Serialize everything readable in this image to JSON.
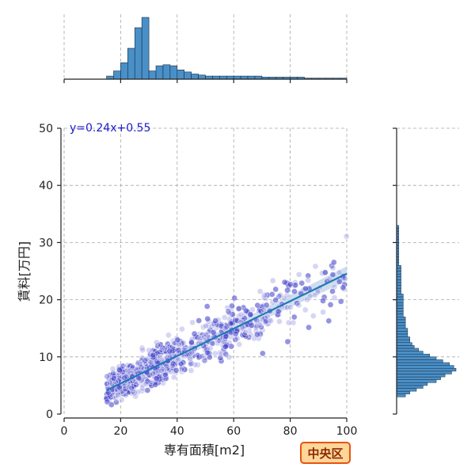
{
  "chart_data": {
    "type": "scatter",
    "title": "",
    "xlabel": "専有面積[m2]",
    "ylabel": "賃料[万円]",
    "xlim": [
      0,
      100
    ],
    "ylim": [
      0,
      50
    ],
    "xticks": [
      0,
      20,
      40,
      60,
      80,
      100
    ],
    "yticks": [
      0,
      10,
      20,
      30,
      40,
      50
    ],
    "grid": true,
    "regression": {
      "slope": 0.24,
      "intercept": 0.55,
      "x_range": [
        15,
        100
      ],
      "label": "y=0.24x+0.55"
    },
    "scatter_clusters": [
      {
        "x_range": [
          15,
          25
        ],
        "y_center_offset": 0,
        "y_spread": 2.2,
        "count": 260
      },
      {
        "x_range": [
          25,
          40
        ],
        "y_center_offset": 0,
        "y_spread": 3.0,
        "count": 260
      },
      {
        "x_range": [
          40,
          60
        ],
        "y_center_offset": 0,
        "y_spread": 4.0,
        "count": 180
      },
      {
        "x_range": [
          60,
          80
        ],
        "y_center_offset": 0,
        "y_spread": 4.5,
        "count": 110
      },
      {
        "x_range": [
          80,
          100
        ],
        "y_center_offset": 0,
        "y_spread": 5.0,
        "count": 55
      }
    ],
    "x_histogram": {
      "bin_width": 2.5,
      "bins_start": 15,
      "counts": [
        3,
        8,
        16,
        30,
        50,
        60,
        8,
        13,
        14,
        13,
        9,
        7,
        5,
        4,
        3,
        3,
        3,
        3,
        3,
        3,
        3,
        3,
        2,
        2,
        2,
        2,
        2,
        2,
        1,
        1,
        1,
        1,
        1,
        1
      ]
    },
    "y_histogram": {
      "bin_width": 0.5,
      "bins_start": 3,
      "counts": [
        4,
        6,
        9,
        12,
        14,
        18,
        20,
        22,
        25,
        27,
        26,
        24,
        21,
        18,
        15,
        12,
        10,
        8,
        7,
        6,
        6,
        5,
        5,
        5,
        4,
        4,
        4,
        4,
        3,
        3,
        3,
        3,
        3,
        3,
        3,
        3,
        2,
        2,
        2,
        2,
        2,
        2,
        2,
        2,
        2,
        2,
        1,
        1,
        1,
        1,
        1,
        1,
        1,
        1,
        1,
        1,
        1,
        1,
        1,
        1
      ]
    },
    "colors": {
      "point_fill": "#8a8ae0",
      "point_stroke": "#2a2ab0",
      "line": "#2077b4",
      "band": "#b8cfe8",
      "hist_fill": "#4a90c8",
      "hist_stroke": "#1a2a40"
    }
  },
  "badge": {
    "label": "中央区"
  }
}
